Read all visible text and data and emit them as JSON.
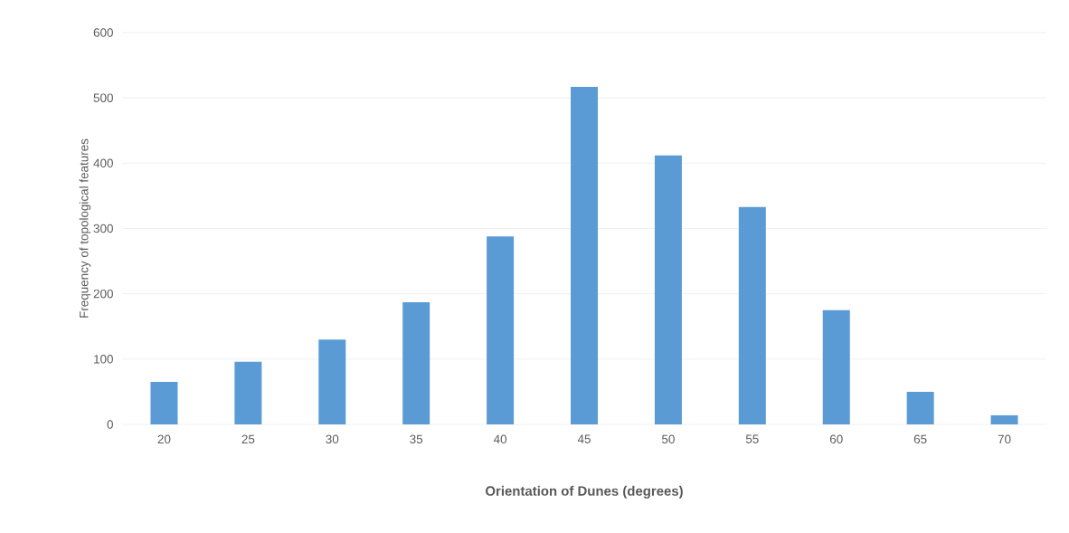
{
  "chart_data": {
    "type": "bar",
    "xlabel": "Orientation of Dunes (degrees)",
    "ylabel": "Frequency of topological features",
    "categories": [
      "20",
      "25",
      "30",
      "35",
      "40",
      "45",
      "50",
      "55",
      "60",
      "65",
      "70"
    ],
    "values": [
      65,
      96,
      130,
      187,
      288,
      517,
      412,
      333,
      175,
      50,
      14
    ],
    "color": "#5b9bd5",
    "ylim": [
      0,
      600
    ],
    "yticks": [
      0,
      100,
      200,
      300,
      400,
      500,
      600
    ],
    "grid": "y"
  }
}
